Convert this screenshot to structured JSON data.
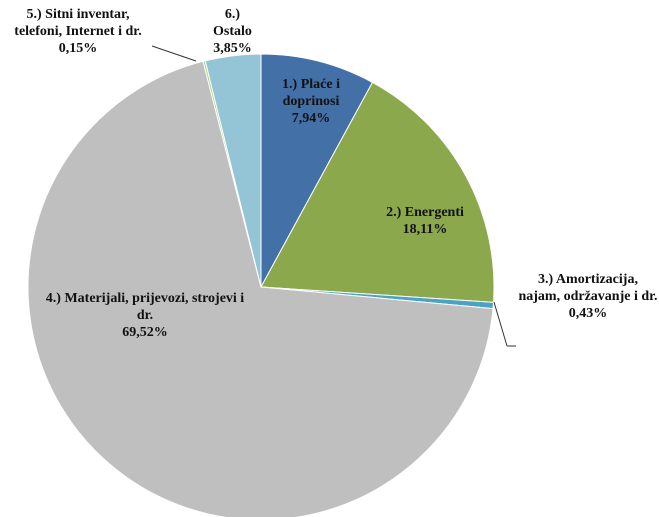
{
  "chart_data": {
    "type": "pie",
    "categories": [
      "1.) Plaće i doprinosi",
      "2.) Energenti",
      "3.) Amortizacija, najam, održavanje i dr.",
      "4.) Materijali, prijevozi, strojevi i dr.",
      "5.) Sitni inventar, telefoni, Internet i dr.",
      "6.) Ostalo"
    ],
    "values": [
      7.94,
      18.11,
      0.43,
      69.52,
      0.15,
      3.85
    ],
    "value_labels": [
      "7,94%",
      "18,11%",
      "0,43%",
      "69,52%",
      "0,15%",
      "3,85%"
    ],
    "colors": [
      "#4470a8",
      "#8ba84c",
      "#4aa3c4",
      "#bfbfbf",
      "#b6d37e",
      "#93c5d6"
    ]
  }
}
